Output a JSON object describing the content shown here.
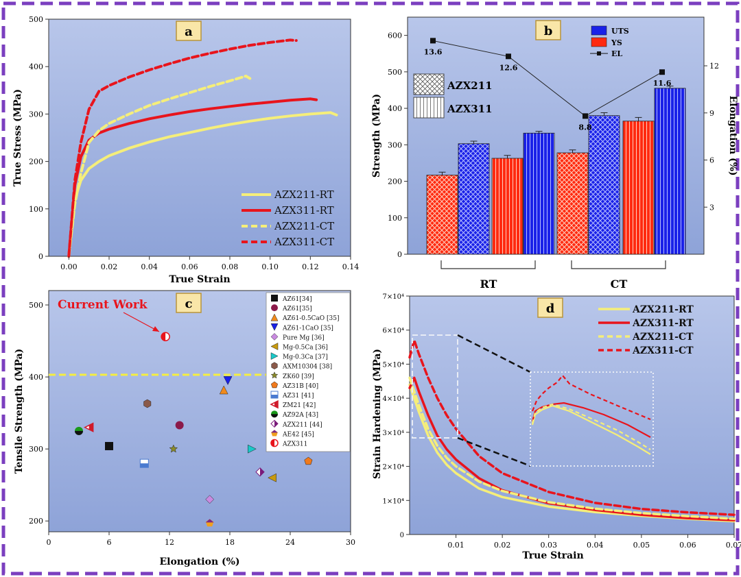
{
  "chart_data": [
    {
      "id": "a",
      "type": "line",
      "panel_label": "a",
      "xlabel": "True Strain",
      "ylabel": "True Stress (MPa)",
      "xlim": [
        -0.01,
        0.14
      ],
      "ylim": [
        0,
        500
      ],
      "xticks": [
        "0.00",
        "0.02",
        "0.04",
        "0.06",
        "0.08",
        "0.10",
        "0.12",
        "0.14"
      ],
      "xtick_values": [
        0,
        0.02,
        0.04,
        0.06,
        0.08,
        0.1,
        0.12,
        0.14
      ],
      "yticks": [
        "0",
        "100",
        "200",
        "300",
        "400",
        "500"
      ],
      "ytick_values": [
        0,
        100,
        200,
        300,
        400,
        500
      ],
      "legend_position": "bottom-right",
      "series": [
        {
          "name": "AZX211-RT",
          "color": "#f5ee7a",
          "style": "solid",
          "x": [
            0,
            0.003,
            0.006,
            0.01,
            0.015,
            0.02,
            0.03,
            0.04,
            0.05,
            0.06,
            0.07,
            0.08,
            0.09,
            0.1,
            0.11,
            0.12,
            0.13,
            0.133
          ],
          "y": [
            0,
            120,
            160,
            185,
            200,
            212,
            228,
            241,
            252,
            261,
            270,
            278,
            285,
            291,
            296,
            300,
            303,
            298
          ]
        },
        {
          "name": "AZX311-RT",
          "color": "#e8141c",
          "style": "solid",
          "x": [
            0,
            0.003,
            0.006,
            0.01,
            0.015,
            0.02,
            0.03,
            0.04,
            0.05,
            0.06,
            0.07,
            0.08,
            0.09,
            0.1,
            0.11,
            0.12,
            0.123
          ],
          "y": [
            0,
            150,
            210,
            245,
            260,
            268,
            280,
            290,
            298,
            305,
            311,
            316,
            321,
            325,
            329,
            332,
            330
          ]
        },
        {
          "name": "AZX211-CT",
          "color": "#f5ee7a",
          "style": "dashed",
          "x": [
            0,
            0.003,
            0.006,
            0.01,
            0.015,
            0.02,
            0.03,
            0.04,
            0.05,
            0.06,
            0.07,
            0.08,
            0.088,
            0.09
          ],
          "y": [
            0,
            110,
            175,
            240,
            265,
            280,
            300,
            318,
            332,
            345,
            358,
            370,
            380,
            375
          ]
        },
        {
          "name": "AZX311-CT",
          "color": "#e8141c",
          "style": "dashed",
          "x": [
            0,
            0.003,
            0.006,
            0.01,
            0.015,
            0.02,
            0.03,
            0.04,
            0.05,
            0.06,
            0.07,
            0.08,
            0.09,
            0.1,
            0.11,
            0.113
          ],
          "y": [
            0,
            160,
            240,
            310,
            348,
            360,
            378,
            393,
            406,
            418,
            428,
            437,
            445,
            451,
            456,
            455
          ]
        }
      ]
    },
    {
      "id": "b",
      "type": "bar",
      "panel_label": "b",
      "ylabel": "Strength (MPa)",
      "y2label": "Elongation (%)",
      "ylim": [
        0,
        650
      ],
      "y2lim": [
        0,
        15.1
      ],
      "yticks": [
        "0",
        "100",
        "200",
        "300",
        "400",
        "500",
        "600"
      ],
      "ytick_values": [
        0,
        100,
        200,
        300,
        400,
        500,
        600
      ],
      "y2ticks": [
        "3",
        "6",
        "9",
        "12"
      ],
      "y2tick_values": [
        3,
        6,
        9,
        12
      ],
      "group_labels": [
        "RT",
        "CT"
      ],
      "legend": [
        {
          "name": "UTS",
          "color": "#1a21e8"
        },
        {
          "name": "YS",
          "color": "#ff2a10"
        },
        {
          "name": "EL",
          "color": "#111111"
        }
      ],
      "pattern_legend": [
        {
          "name": "AZX211",
          "pattern": "crosshatch"
        },
        {
          "name": "AZX311",
          "pattern": "vertical"
        }
      ],
      "bars": [
        {
          "label": "AZX211-RT YS",
          "value": 217,
          "err": 8,
          "metric": "YS",
          "alloy": "AZX211"
        },
        {
          "label": "AZX211-RT UTS",
          "value": 303,
          "err": 7,
          "metric": "UTS",
          "alloy": "AZX211"
        },
        {
          "label": "AZX311-RT YS",
          "value": 263,
          "err": 8,
          "metric": "YS",
          "alloy": "AZX311"
        },
        {
          "label": "AZX311-RT UTS",
          "value": 332,
          "err": 5,
          "metric": "UTS",
          "alloy": "AZX311"
        },
        {
          "label": "AZX211-CT YS",
          "value": 278,
          "err": 8,
          "metric": "YS",
          "alloy": "AZX211"
        },
        {
          "label": "AZX211-CT UTS",
          "value": 380,
          "err": 8,
          "metric": "UTS",
          "alloy": "AZX211"
        },
        {
          "label": "AZX311-CT YS",
          "value": 365,
          "err": 10,
          "metric": "YS",
          "alloy": "AZX311"
        },
        {
          "label": "AZX311-CT UTS",
          "value": 455,
          "err": 6,
          "metric": "UTS",
          "alloy": "AZX311"
        }
      ],
      "el_line": {
        "values": [
          13.6,
          12.6,
          8.8,
          11.6
        ],
        "labels": [
          "13.6",
          "12.6",
          "8.8",
          "11.6"
        ],
        "at_bar_pairs": [
          0,
          1,
          2,
          3
        ]
      }
    },
    {
      "id": "c",
      "type": "scatter",
      "panel_label": "c",
      "xlabel": "Elongation (%)",
      "ylabel": "Tensile Strength (MPa)",
      "xlim": [
        0,
        30
      ],
      "ylim": [
        185,
        520
      ],
      "xticks": [
        "0",
        "6",
        "12",
        "18",
        "24",
        "30"
      ],
      "xtick_values": [
        0,
        6,
        12,
        18,
        24,
        30
      ],
      "yticks": [
        "200",
        "300",
        "400",
        "500"
      ],
      "ytick_values": [
        200,
        300,
        400,
        500
      ],
      "reference_line_y": 403,
      "annotation": "Current Work",
      "points": [
        {
          "name": "AZ61[34]",
          "x": 6.0,
          "y": 304,
          "marker": "square",
          "color": "#111111"
        },
        {
          "name": "AZ61[35]",
          "x": 13.0,
          "y": 333,
          "marker": "circle",
          "color": "#8b1a4a"
        },
        {
          "name": "AZ61-0.5CaO [35]",
          "x": 17.4,
          "y": 382,
          "marker": "triangle-up",
          "color": "#f08a1c"
        },
        {
          "name": "AZ61-1CaO [35]",
          "x": 17.8,
          "y": 395,
          "marker": "triangle-down",
          "color": "#1a21e8"
        },
        {
          "name": "Pure Mg [36]",
          "x": 16.0,
          "y": 230,
          "marker": "diamond",
          "color": "#c98ae0"
        },
        {
          "name": "Mg-0.5Ca [36]",
          "x": 22.2,
          "y": 260,
          "marker": "triangle-left",
          "color": "#c89a10"
        },
        {
          "name": "Mg-0.3Ca [37]",
          "x": 20.2,
          "y": 300,
          "marker": "triangle-right",
          "color": "#1ac8c8"
        },
        {
          "name": "AXM10304 [38]",
          "x": 9.8,
          "y": 363,
          "marker": "hexagon",
          "color": "#8a5a4a"
        },
        {
          "name": "ZK60 [39]",
          "x": 12.4,
          "y": 300,
          "marker": "star",
          "color": "#8a8a2a"
        },
        {
          "name": "AZ31B [40]",
          "x": 25.8,
          "y": 283,
          "marker": "pentagon",
          "color": "#f07a1c"
        },
        {
          "name": "AZ31 [41]",
          "x": 9.5,
          "y": 280,
          "marker": "half-square",
          "color": "#4a7ad0"
        },
        {
          "name": "ZM21 [42]",
          "x": 4.0,
          "y": 330,
          "marker": "half-triangle-left",
          "color": "#d01a2a"
        },
        {
          "name": "AZ92A [43]",
          "x": 3.0,
          "y": 325,
          "marker": "half-circle",
          "color": "#1a9a1a"
        },
        {
          "name": "AZX211 [44]",
          "x": 21.0,
          "y": 268,
          "marker": "half-diamond",
          "color": "#7a1a7a"
        },
        {
          "name": "AE42 [45]",
          "x": 16.0,
          "y": 197,
          "marker": "half-pentagon",
          "color": "#7a2a8a"
        },
        {
          "name": "AZX311",
          "x": 11.6,
          "y": 456,
          "marker": "half-circle-red",
          "color": "#e8141c"
        }
      ]
    },
    {
      "id": "d",
      "type": "line",
      "panel_label": "d",
      "xlabel": "True Strain",
      "ylabel": "Strain Hardening (MPa)",
      "xlim": [
        0,
        0.07
      ],
      "ylim": [
        0,
        70000
      ],
      "xticks": [
        "0.01",
        "0.02",
        "0.03",
        "0.04",
        "0.05",
        "0.06",
        "0.07"
      ],
      "xtick_values": [
        0.01,
        0.02,
        0.03,
        0.04,
        0.05,
        0.06,
        0.07
      ],
      "yticks": [
        "0",
        "1×10⁴",
        "2×10⁴",
        "3×10⁴",
        "4×10⁴",
        "5×10⁴",
        "6×10⁴",
        "7×10⁴"
      ],
      "ytick_values": [
        0,
        10000,
        20000,
        30000,
        40000,
        50000,
        60000,
        70000
      ],
      "legend_position": "top-right",
      "series": [
        {
          "name": "AZX211-RT",
          "color": "#f5ee7a",
          "style": "solid",
          "x": [
            0,
            0.002,
            0.004,
            0.006,
            0.008,
            0.01,
            0.015,
            0.02,
            0.03,
            0.04,
            0.05,
            0.06,
            0.07
          ],
          "y": [
            44000,
            36000,
            29000,
            24000,
            20500,
            18000,
            13500,
            11000,
            8200,
            6600,
            5500,
            4600,
            3900
          ]
        },
        {
          "name": "AZX311-RT",
          "color": "#e8141c",
          "style": "solid",
          "x": [
            0,
            0.001,
            0.002,
            0.004,
            0.006,
            0.008,
            0.01,
            0.015,
            0.02,
            0.03,
            0.04,
            0.05,
            0.06,
            0.07
          ],
          "y": [
            43000,
            46000,
            42000,
            35000,
            29000,
            25000,
            22000,
            16500,
            13000,
            9200,
            7200,
            5800,
            4800,
            4200
          ]
        },
        {
          "name": "AZX211-CT",
          "color": "#f5ee7a",
          "style": "dashed",
          "x": [
            0,
            0.002,
            0.004,
            0.006,
            0.008,
            0.01,
            0.015,
            0.02,
            0.03,
            0.04,
            0.05,
            0.06,
            0.07
          ],
          "y": [
            46000,
            38000,
            31000,
            26000,
            22500,
            20000,
            15500,
            12800,
            9500,
            7600,
            6300,
            5400,
            4600
          ]
        },
        {
          "name": "AZX311-CT",
          "color": "#e8141c",
          "style": "dashed",
          "x": [
            0,
            0.001,
            0.002,
            0.004,
            0.006,
            0.008,
            0.01,
            0.015,
            0.02,
            0.03,
            0.04,
            0.05,
            0.06,
            0.07
          ],
          "y": [
            52000,
            57000,
            53000,
            46000,
            40000,
            35000,
            31000,
            23000,
            18000,
            12500,
            9300,
            7500,
            6500,
            5800
          ]
        }
      ]
    }
  ]
}
